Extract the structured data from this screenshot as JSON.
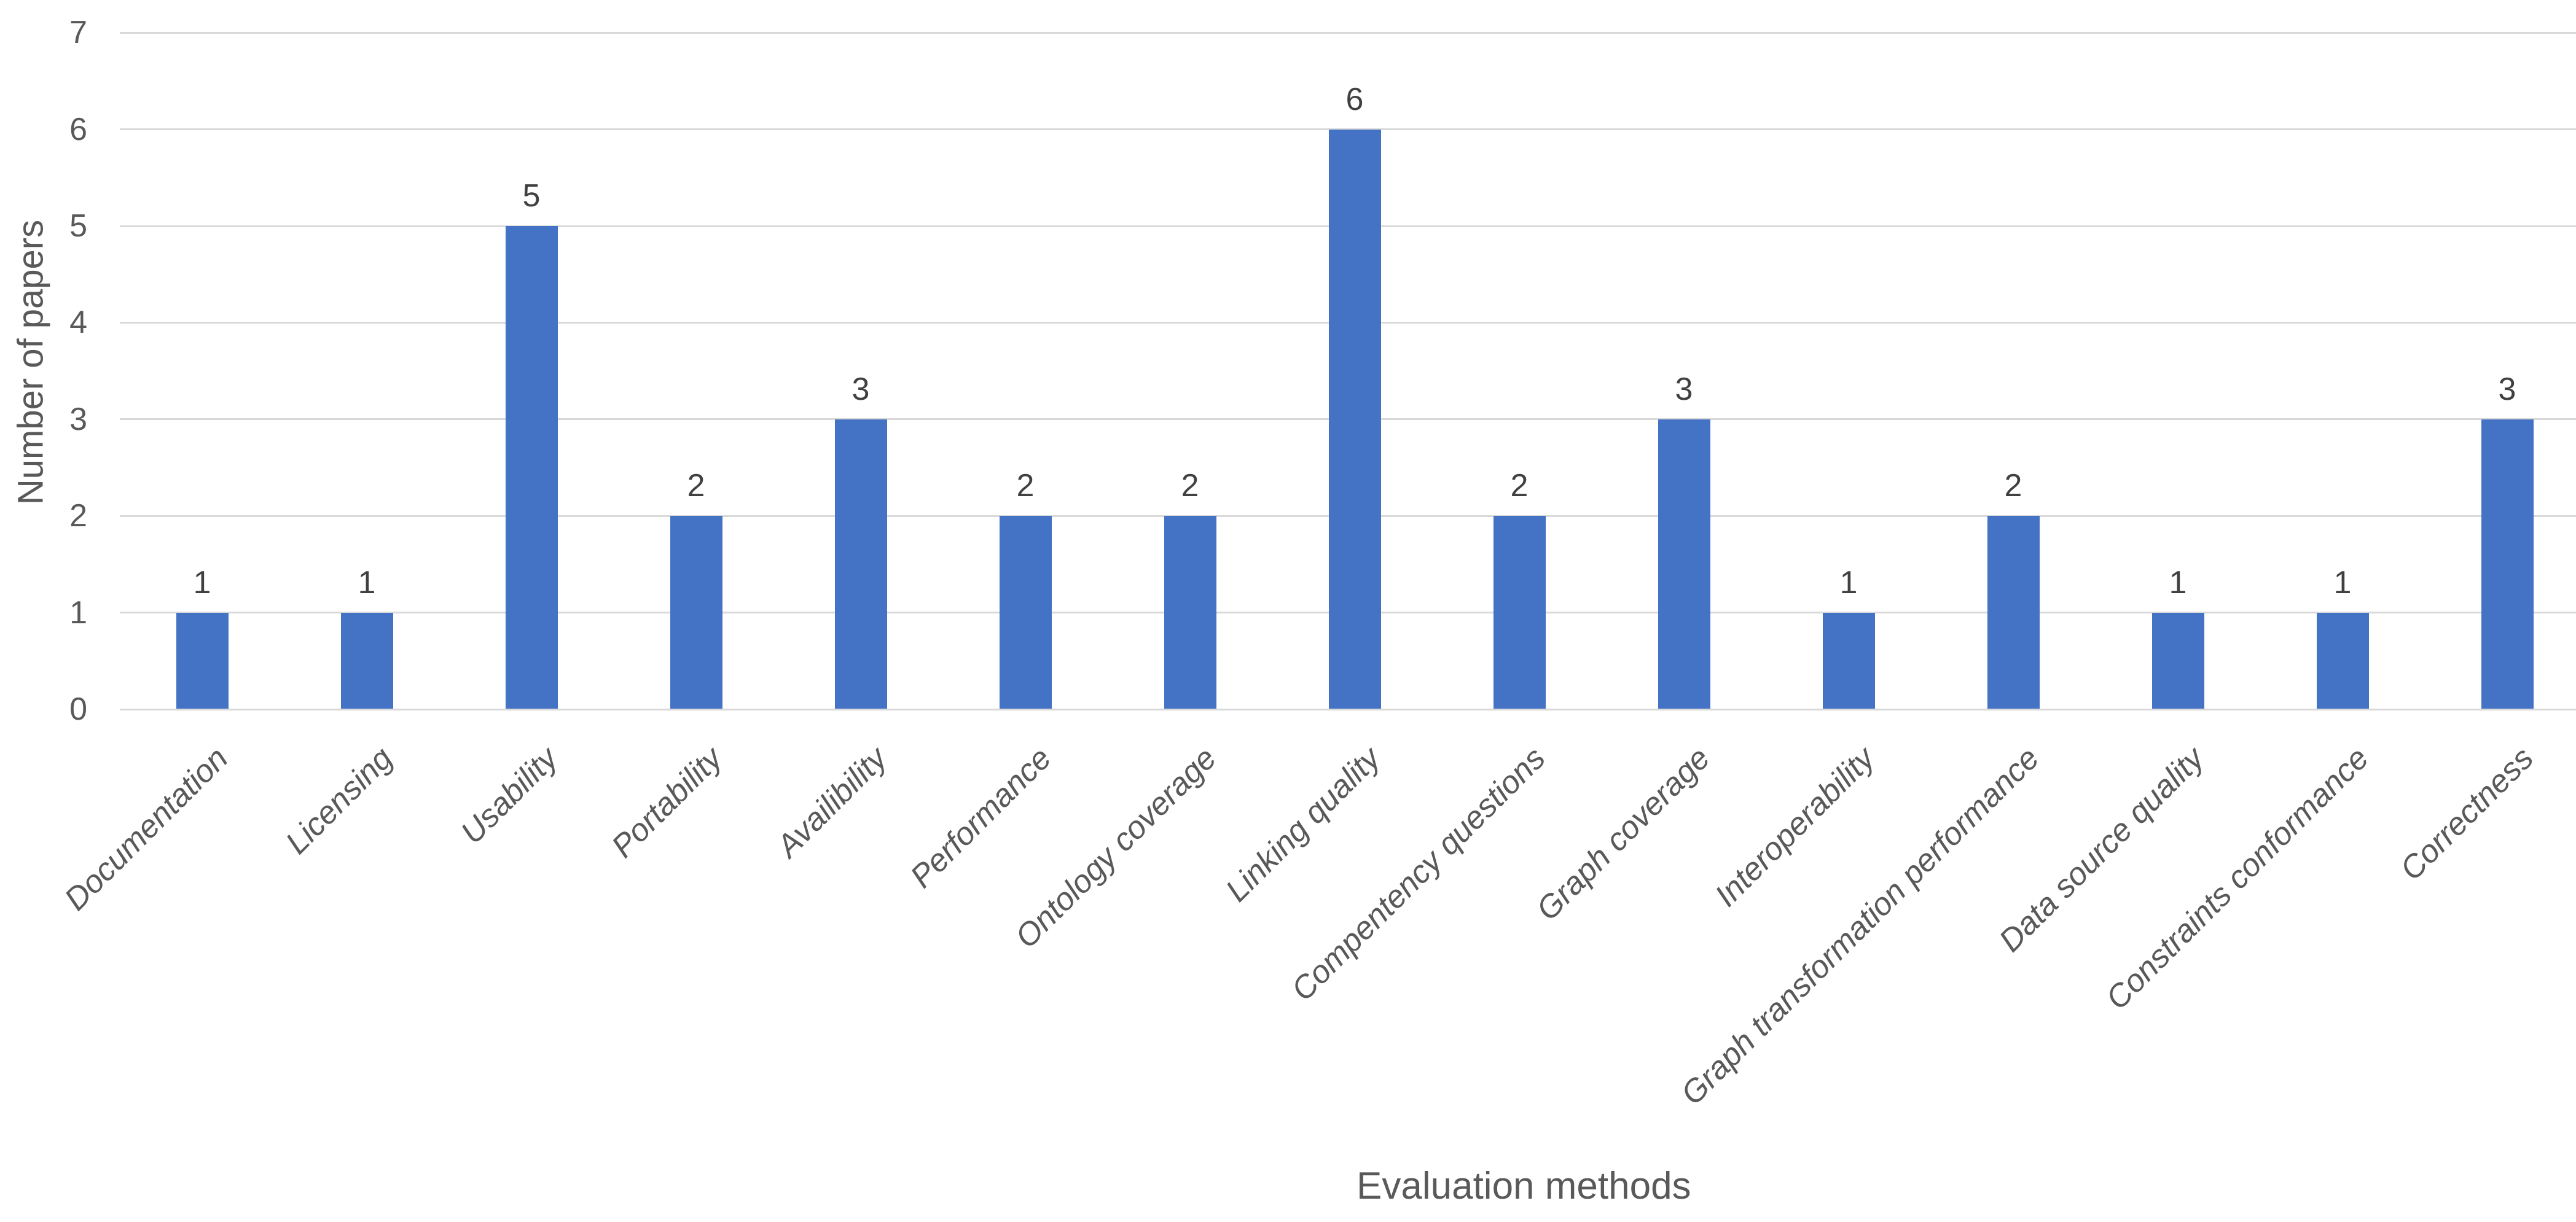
{
  "chart_data": {
    "type": "bar",
    "title": "",
    "categories": [
      "Documentation",
      "Licensing",
      "Usability",
      "Portability",
      "Availibility",
      "Performance",
      "Ontology coverage",
      "Linking quality",
      "Compentency questions",
      "Graph coverage",
      "Interoperability",
      "Graph transformation performance",
      "Data source quality",
      "Constraints conformance",
      "Correctness"
    ],
    "values": [
      1,
      1,
      5,
      2,
      3,
      2,
      2,
      6,
      2,
      3,
      1,
      2,
      1,
      1,
      3
    ],
    "data_labels": [
      "1",
      "1",
      "5",
      "2",
      "3",
      "2",
      "2",
      "6",
      "2",
      "3",
      "1",
      "2",
      "1",
      "1",
      "3"
    ],
    "xlabel": "Evaluation methods",
    "ylabel": "Number of papers",
    "ylim": [
      0,
      7
    ],
    "yticks": [
      "0",
      "1",
      "2",
      "3",
      "4",
      "5",
      "6",
      "7"
    ],
    "grid": "horizontal",
    "legend": "none",
    "data_labels_shown": true
  },
  "colors": {
    "bar": "#4472C4",
    "gridline": "#D9D9D9",
    "axis_line": "#D9D9D9",
    "tick_label": "#595959",
    "axis_title": "#595959",
    "category_label": "#595959",
    "data_label": "#404040",
    "background": "#FFFFFF"
  }
}
